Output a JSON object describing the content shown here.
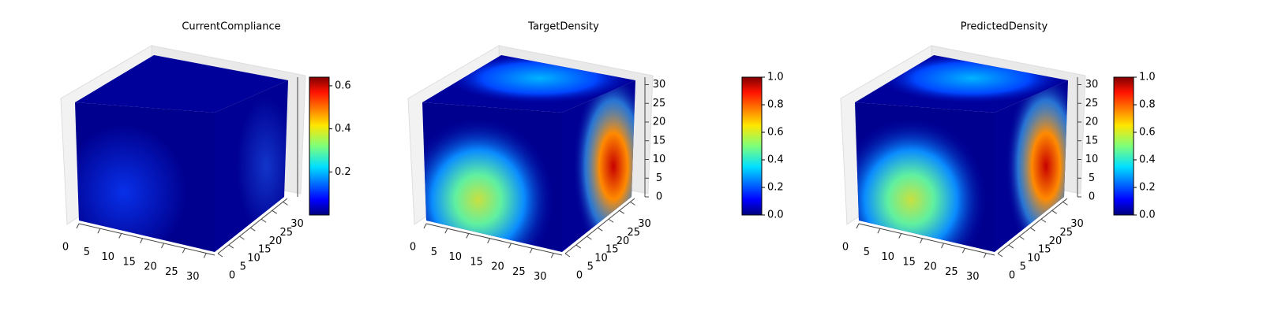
{
  "chart_data": [
    {
      "type": "voxel",
      "title": "CurrentCompliance",
      "colormap": "jet",
      "xlim": [
        0,
        32
      ],
      "xticks": [
        0,
        5,
        10,
        15,
        20,
        25,
        30
      ],
      "ylim": [
        0,
        32
      ],
      "yticks": [
        0,
        5,
        10,
        15,
        20,
        25,
        30
      ],
      "clim": [
        0,
        0.64
      ],
      "cticks": [
        0.2,
        0.4,
        0.6
      ]
    },
    {
      "type": "voxel",
      "title": "TargetDensity",
      "colormap": "jet",
      "xlim": [
        0,
        32
      ],
      "xticks": [
        0,
        5,
        10,
        15,
        20,
        25,
        30
      ],
      "ylim": [
        0,
        32
      ],
      "yticks": [
        0,
        5,
        10,
        15,
        20,
        25,
        30
      ],
      "zlim": [
        0,
        32
      ],
      "zticks": [
        0,
        5,
        10,
        15,
        20,
        25,
        30
      ],
      "clim": [
        0,
        1
      ],
      "cticks": [
        {
          "value": 0,
          "label": "0.0"
        },
        0.2,
        0.4,
        0.6,
        0.8,
        {
          "value": 1,
          "label": "1.0"
        }
      ]
    },
    {
      "type": "voxel",
      "title": "PredictedDensity",
      "colormap": "jet",
      "xlim": [
        0,
        32
      ],
      "xticks": [
        0,
        5,
        10,
        15,
        20,
        25,
        30
      ],
      "ylim": [
        0,
        32
      ],
      "yticks": [
        0,
        5,
        10,
        15,
        20,
        25,
        30
      ],
      "zlim": [
        0,
        32
      ],
      "zticks": [
        0,
        5,
        10,
        15,
        20,
        25,
        30
      ],
      "clim": [
        0,
        1
      ],
      "cticks": [
        {
          "value": 0,
          "label": "0.0"
        },
        0.2,
        0.4,
        0.6,
        0.8,
        {
          "value": 1,
          "label": "1.0"
        }
      ]
    }
  ]
}
